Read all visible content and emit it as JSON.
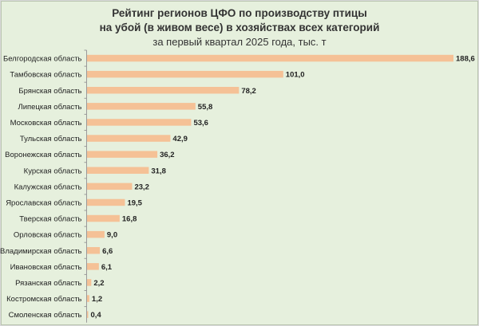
{
  "chart_data": {
    "type": "bar",
    "orientation": "horizontal",
    "title_line1": "Рейтинг регионов ЦФО по производству птицы",
    "title_line2": "на убой (в живом весе) в хозяйствах всех категорий",
    "subtitle": "за первый квартал 2025 года, тыс. т",
    "bar_color": "#f5c196",
    "background_color": "#e6f0dd",
    "grid": false,
    "categories": [
      "Белгородская область",
      "Тамбовская область",
      "Брянская область",
      "Липецкая область",
      "Московская область",
      "Тульская область",
      "Воронежская область",
      "Курская область",
      "Калужская область",
      "Ярославская область",
      "Тверская область",
      "Орловская область",
      "Владимирская область",
      "Ивановская область",
      "Рязанская область",
      "Костромская область",
      "Смоленская область"
    ],
    "values": [
      188.6,
      101.0,
      78.2,
      55.8,
      53.6,
      42.9,
      36.2,
      31.8,
      23.2,
      19.5,
      16.8,
      9.0,
      6.6,
      6.1,
      2.2,
      1.2,
      0.4
    ],
    "value_labels": [
      "188,6",
      "101,0",
      "78,2",
      "55,8",
      "53,6",
      "42,9",
      "36,2",
      "31,8",
      "23,2",
      "19,5",
      "16,8",
      "9,0",
      "6,6",
      "6,1",
      "2,2",
      "1,2",
      "0,4"
    ]
  }
}
